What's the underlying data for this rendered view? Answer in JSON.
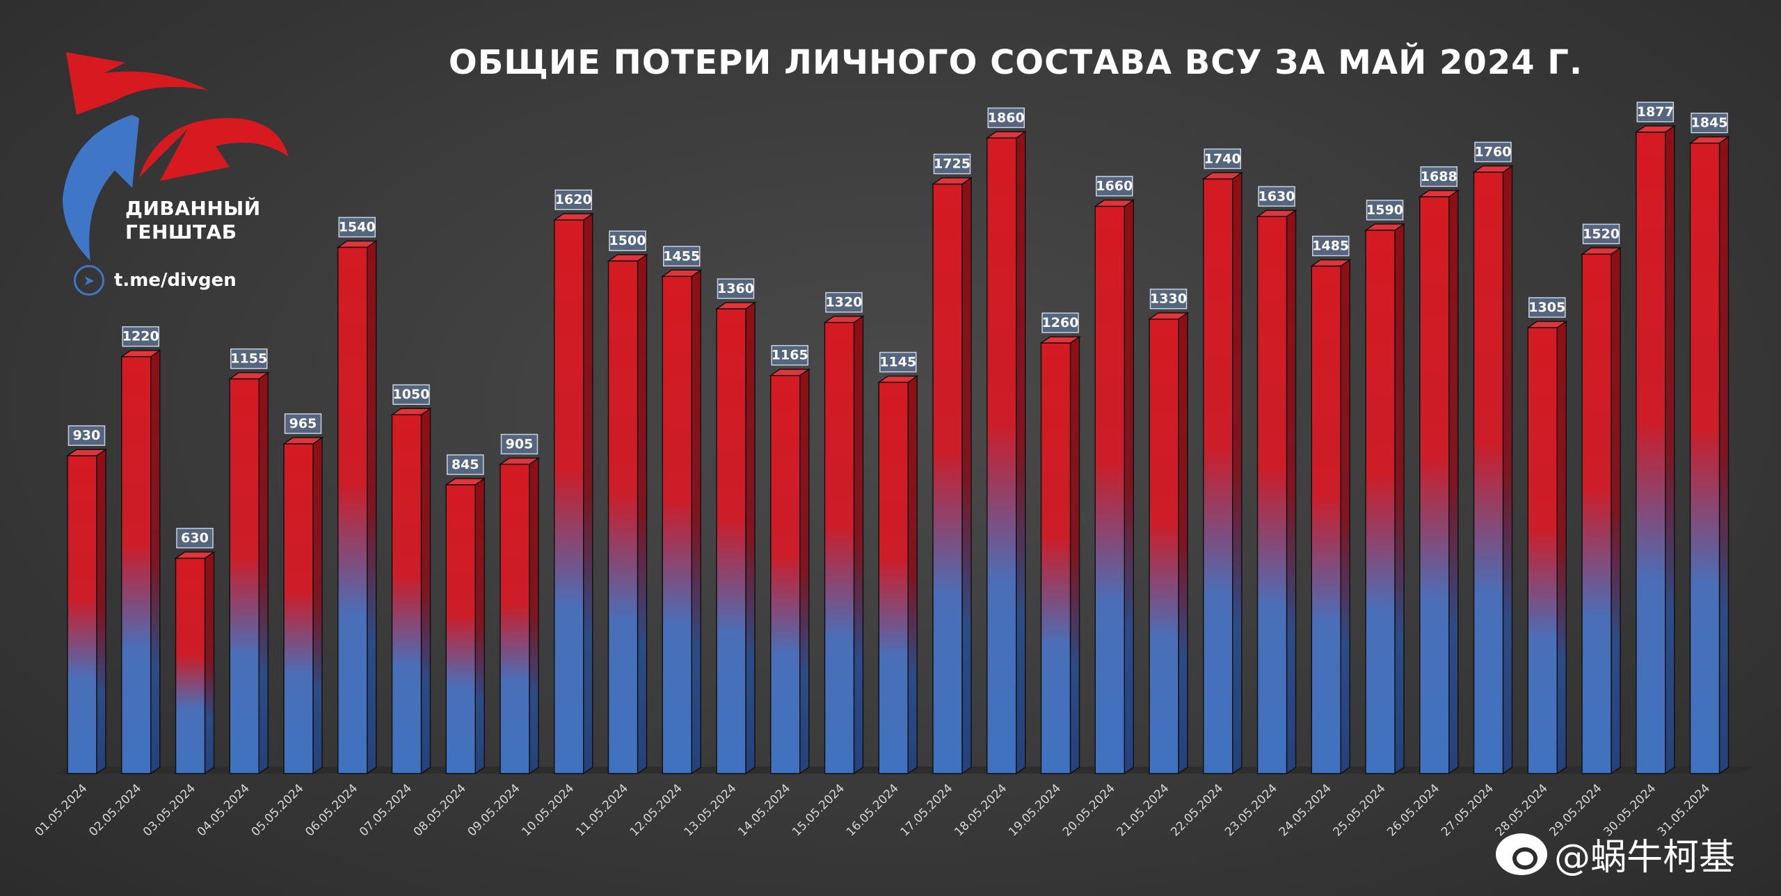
{
  "brand": {
    "name_line1": "ДИВАННЫЙ",
    "name_line2": "ГЕНШТАБ",
    "channel": "t.me/divgen",
    "arrow_red": "#d71920",
    "arrow_blue": "#3f77c6"
  },
  "watermark": {
    "text": "@蜗牛柯基"
  },
  "chart_data": {
    "type": "bar",
    "title": "ОБЩИЕ ПОТЕРИ ЛИЧНОГО СОСТАВА ВСУ ЗА МАЙ 2024 Г.",
    "xlabel": "",
    "ylabel": "",
    "ylim": [
      0,
      1950
    ],
    "grid": false,
    "legend": "none",
    "bar_colors": {
      "top": "#d41a22",
      "bottom": "#3f72c0"
    },
    "categories": [
      "01.05.2024",
      "02.05.2024",
      "03.05.2024",
      "04.05.2024",
      "05.05.2024",
      "06.05.2024",
      "07.05.2024",
      "08.05.2024",
      "09.05.2024",
      "10.05.2024",
      "11.05.2024",
      "12.05.2024",
      "13.05.2024",
      "14.05.2024",
      "15.05.2024",
      "16.05.2024",
      "17.05.2024",
      "18.05.2024",
      "19.05.2024",
      "20.05.2024",
      "21.05.2024",
      "22.05.2024",
      "23.05.2024",
      "24.05.2024",
      "25.05.2024",
      "26.05.2024",
      "27.05.2024",
      "28.05.2024",
      "29.05.2024",
      "30.05.2024",
      "31.05.2024"
    ],
    "values": [
      930,
      1220,
      630,
      1155,
      965,
      1540,
      1050,
      845,
      905,
      1620,
      1500,
      1455,
      1360,
      1165,
      1320,
      1145,
      1725,
      1860,
      1260,
      1660,
      1330,
      1740,
      1630,
      1485,
      1590,
      1688,
      1760,
      1305,
      1520,
      1877,
      1845
    ]
  }
}
